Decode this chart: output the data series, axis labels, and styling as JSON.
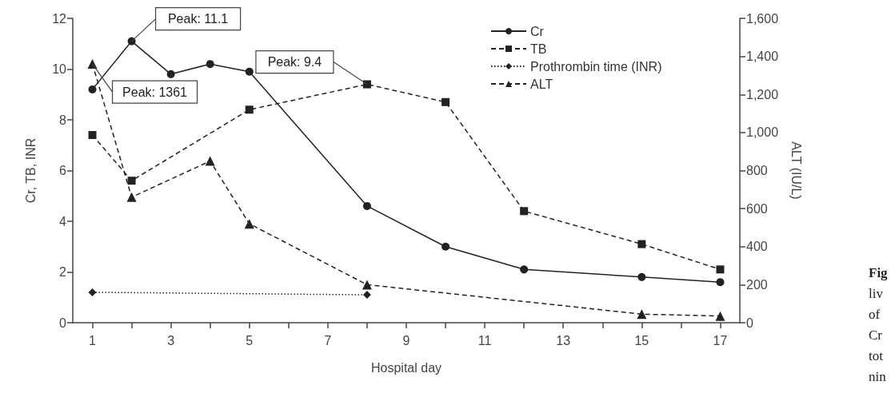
{
  "chart_data": {
    "type": "line",
    "xlabel": "Hospital day",
    "ylabel": "Cr, TB, INR",
    "y2label": "ALT (IU/L)",
    "xlim": [
      0.5,
      17.5
    ],
    "xticks": [
      1,
      {
        "value": 2,
        "label": null
      },
      3,
      {
        "value": 4,
        "label": null
      },
      5,
      {
        "value": 6,
        "label": null
      },
      7,
      {
        "value": 8,
        "label": null
      },
      9,
      {
        "value": 10,
        "label": null
      },
      11,
      {
        "value": 12,
        "label": null
      },
      13,
      {
        "value": 14,
        "label": null
      },
      15,
      {
        "value": 16,
        "label": null
      },
      17
    ],
    "ylim": [
      0,
      12
    ],
    "yticks": [
      0,
      2,
      4,
      6,
      8,
      10,
      12
    ],
    "y2lim": [
      0,
      1600
    ],
    "y2ticks": [
      0,
      200,
      400,
      600,
      800,
      {
        "value": 1000,
        "label": "1,000"
      },
      {
        "value": 1200,
        "label": "1,200"
      },
      {
        "value": 1400,
        "label": "1,400"
      },
      {
        "value": 1600,
        "label": "1,600"
      }
    ],
    "grid": false,
    "legend": "top right",
    "series": [
      {
        "name": "Cr",
        "color": "#222222",
        "marker": "circle",
        "line_style": "solid",
        "x": [
          1,
          2,
          3,
          4,
          5,
          8,
          10,
          12,
          15,
          17
        ],
        "values": [
          9.2,
          11.1,
          9.8,
          10.2,
          9.9,
          4.6,
          3.0,
          2.1,
          1.8,
          1.6
        ]
      },
      {
        "name": "TB",
        "color": "#222222",
        "marker": "square",
        "line_style": "dashed",
        "x": [
          1,
          2,
          5,
          8,
          10,
          12,
          15,
          17
        ],
        "values": [
          7.4,
          5.6,
          8.4,
          9.4,
          8.7,
          4.4,
          3.1,
          2.1
        ]
      },
      {
        "name": "Prothrombin time (INR)",
        "color": "#222222",
        "marker": "diamond",
        "line_style": "dotted",
        "x": [
          1,
          8
        ],
        "values": [
          1.2,
          1.1
        ]
      },
      {
        "name": "ALT",
        "color": "#222222",
        "marker": "triangle",
        "line_style": "dashed",
        "axis": "y2",
        "x": [
          1,
          2,
          4,
          5,
          8,
          15,
          17
        ],
        "values": [
          1361,
          660,
          850,
          520,
          200,
          45,
          35
        ]
      }
    ],
    "annotations": [
      {
        "text": "Peak: 11.1",
        "x": 2,
        "y": 11.1
      },
      {
        "text": "Peak: 1361",
        "x": 1,
        "y": 10.2
      },
      {
        "text": "Peak: 9.4",
        "x": 8,
        "y": 9.4
      },
      "Fig",
      "liv",
      "of",
      "Cr",
      "tot",
      "nin"
    ]
  }
}
